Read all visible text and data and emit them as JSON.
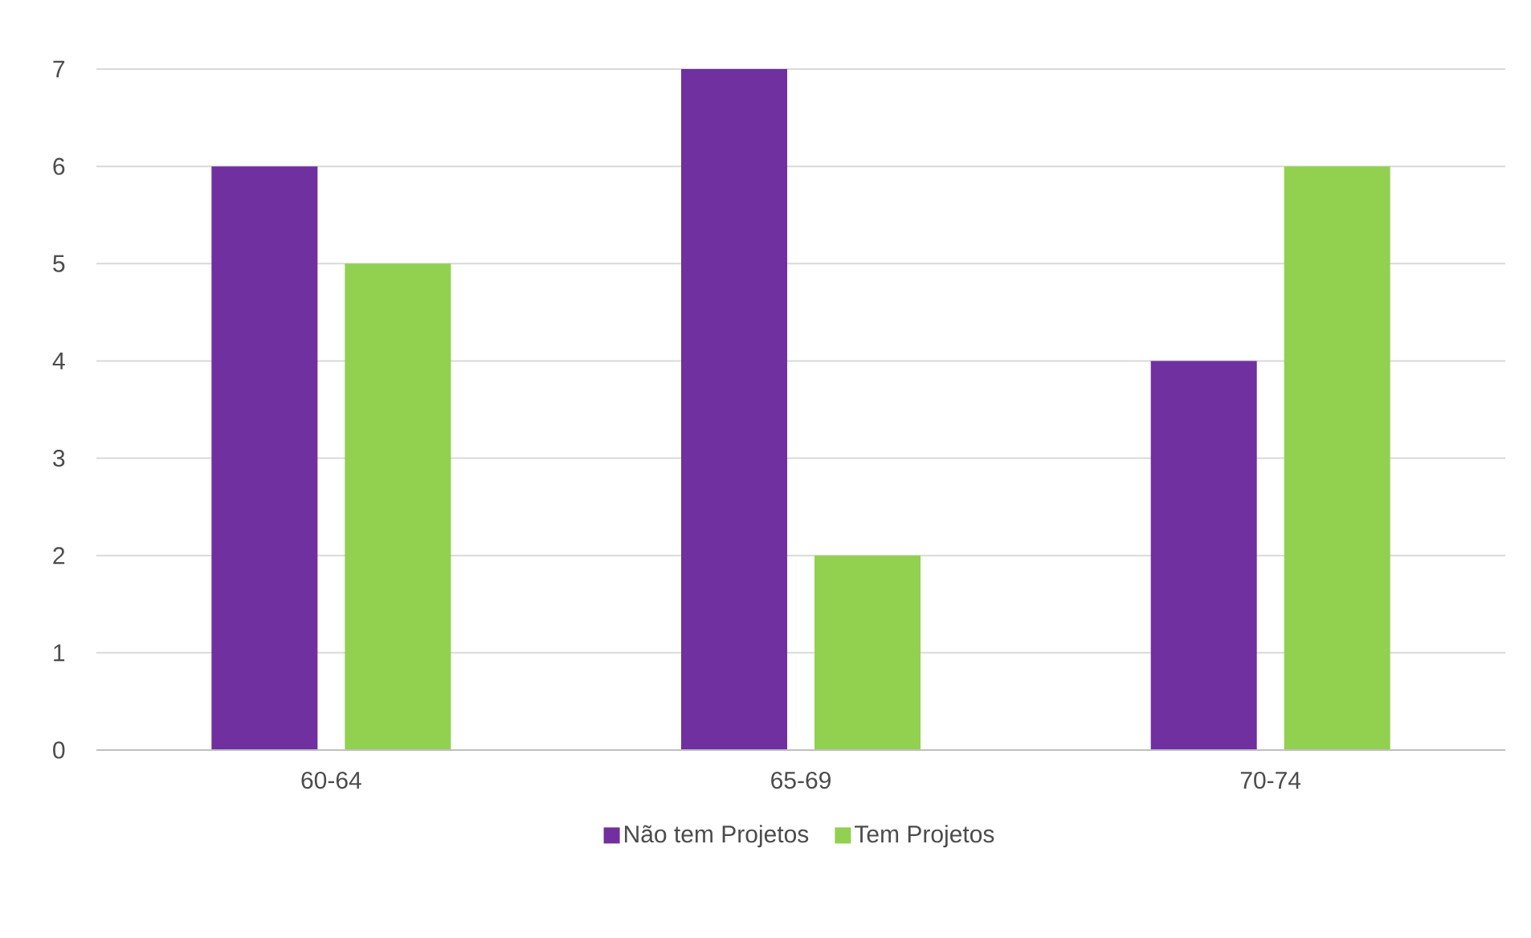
{
  "chart_data": {
    "type": "bar",
    "categories": [
      "60-64",
      "65-69",
      "70-74"
    ],
    "series": [
      {
        "name": "Não tem Projetos",
        "color": "#7030a0",
        "values": [
          6,
          7,
          4
        ]
      },
      {
        "name": "Tem Projetos",
        "color": "#92d050",
        "values": [
          5,
          2,
          6
        ]
      }
    ],
    "ylim": [
      0,
      7
    ],
    "yticks": [
      0,
      1,
      2,
      3,
      4,
      5,
      6,
      7
    ],
    "grid": "y",
    "legend": "bottom"
  }
}
